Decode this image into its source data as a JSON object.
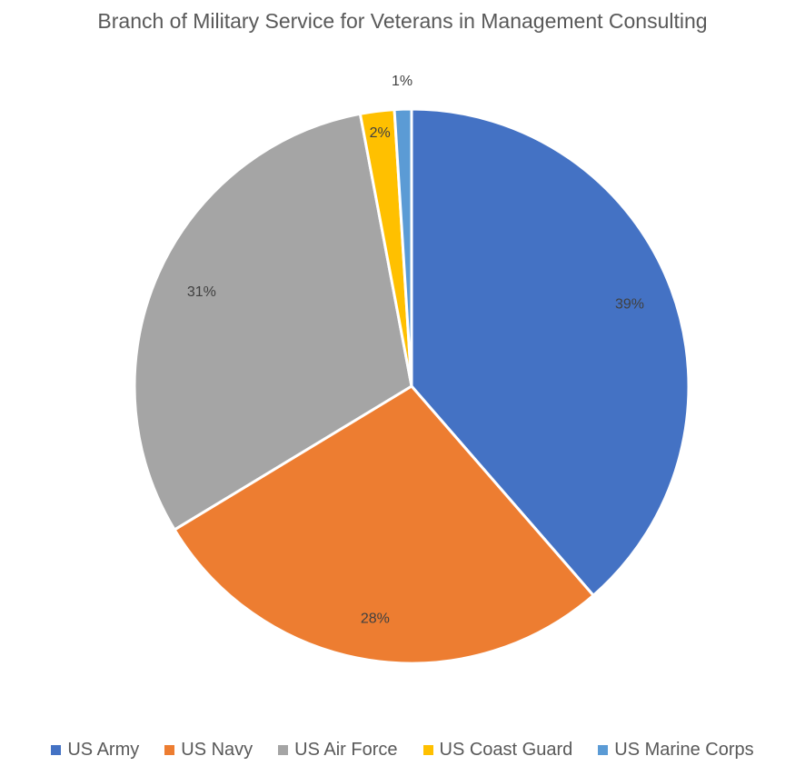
{
  "chart_data": {
    "type": "pie",
    "title": "Branch of Military Service for Veterans in Management Consulting",
    "slices": [
      {
        "name": "US Army",
        "value": 39,
        "label": "39%",
        "color": "#4472C4"
      },
      {
        "name": "US Navy",
        "value": 28,
        "label": "28%",
        "color": "#ED7D31"
      },
      {
        "name": "US Air Force",
        "value": 31,
        "label": "31%",
        "color": "#A5A5A5"
      },
      {
        "name": "US Coast Guard",
        "value": 2,
        "label": "2%",
        "color": "#FFC000"
      },
      {
        "name": "US Marine Corps",
        "value": 1,
        "label": "1%",
        "color": "#5B9BD5"
      }
    ],
    "legend_position": "bottom",
    "start_angle_deg": 0,
    "direction": "clockwise"
  }
}
